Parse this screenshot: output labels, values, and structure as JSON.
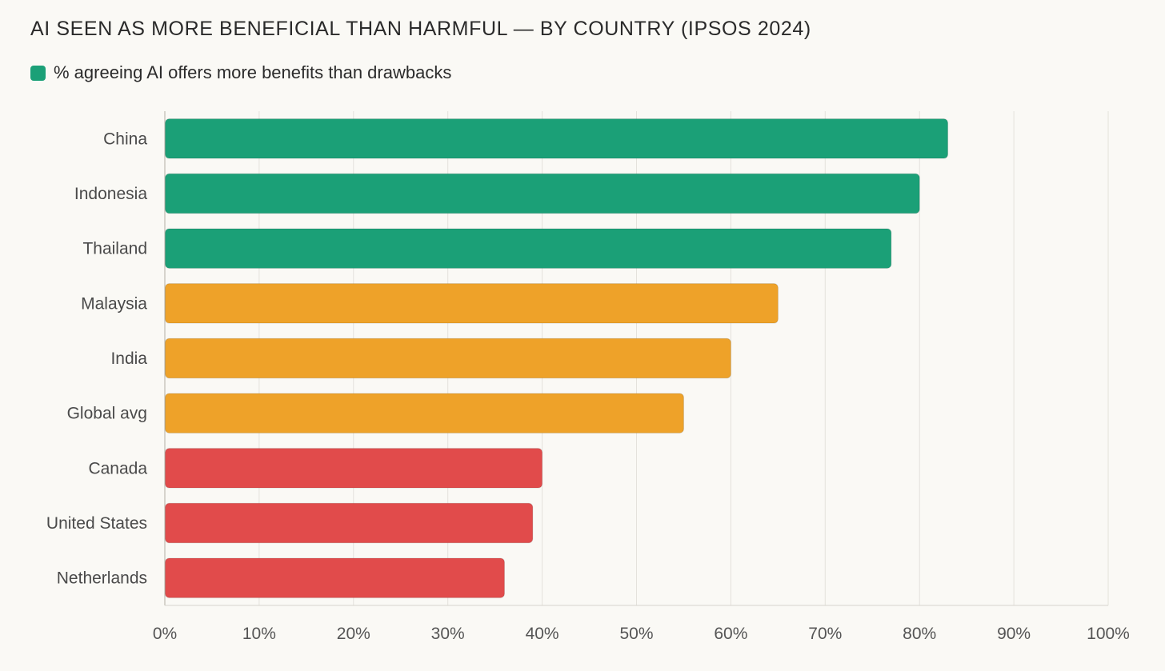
{
  "chart_data": {
    "type": "bar",
    "orientation": "horizontal",
    "title": "AI SEEN AS MORE BENEFICIAL THAN HARMFUL — BY COUNTRY (IPSOS 2024)",
    "legend": [
      {
        "label": "% agreeing AI offers more benefits than drawbacks",
        "color": "#1ba077"
      }
    ],
    "categories": [
      "China",
      "Indonesia",
      "Thailand",
      "Malaysia",
      "India",
      "Global avg",
      "Canada",
      "United States",
      "Netherlands"
    ],
    "values": [
      83,
      80,
      77,
      65,
      60,
      55,
      40,
      39,
      36
    ],
    "colors": [
      "#1ba077",
      "#1ba077",
      "#1ba077",
      "#eea229",
      "#eea229",
      "#eea229",
      "#e14b4b",
      "#e14b4b",
      "#e14b4b"
    ],
    "xlim": [
      0,
      100
    ],
    "xticks": [
      0,
      10,
      20,
      30,
      40,
      50,
      60,
      70,
      80,
      90,
      100
    ],
    "xtick_format": "{v}%",
    "xlabel": "",
    "ylabel": "",
    "grid": true
  }
}
